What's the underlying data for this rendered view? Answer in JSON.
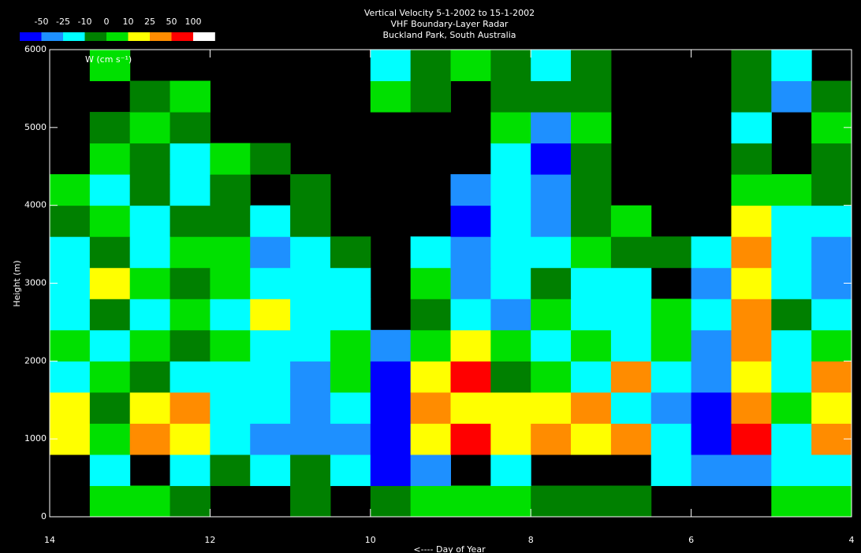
{
  "chart_data": {
    "type": "heatmap",
    "title": "Vertical Velocity  5-1-2002 to 15-1-2002",
    "subtitle": "VHF Boundary-Layer Radar",
    "location": "Buckland Park, South Australia",
    "annotation": "W (cm s⁻¹)",
    "xlabel": "<---- Day of Year",
    "ylabel": "Height (m)",
    "xlim": [
      14,
      4
    ],
    "xticks": [
      14,
      12,
      10,
      8,
      6,
      4
    ],
    "ylim": [
      0,
      6000
    ],
    "yticks": [
      0,
      1000,
      2000,
      3000,
      4000,
      5000,
      6000
    ],
    "xbins": [
      14,
      13.5,
      13,
      12.5,
      12,
      11.5,
      11,
      10.5,
      10,
      9.5,
      9,
      8.5,
      8,
      7.5,
      7,
      6.5,
      6,
      5.5,
      5,
      4.5,
      4
    ],
    "ybins": [
      0,
      400,
      800,
      1200,
      1600,
      2000,
      2400,
      2800,
      3200,
      3600,
      4000,
      4400,
      4800,
      5200,
      5600,
      6000
    ],
    "colorbar": {
      "bounds": [
        -50,
        -25,
        -10,
        0,
        10,
        25,
        50,
        100
      ],
      "colors": [
        "#0000ff",
        "#1e90ff",
        "#00ffff",
        "#008000",
        "#00e000",
        "#ffff00",
        "#ff8c00",
        "#ff0000",
        "#ffffff"
      ]
    },
    "z": [
      [
        null,
        5,
        5,
        -5,
        null,
        null,
        -5,
        null,
        -5,
        5,
        5,
        5,
        -5,
        -5,
        -5,
        null,
        null,
        null,
        5,
        5
      ],
      [
        null,
        -15,
        null,
        -15,
        -5,
        -15,
        -5,
        -15,
        -60,
        -35,
        null,
        -15,
        null,
        null,
        null,
        -15,
        -35,
        -35,
        -15,
        -15
      ],
      [
        15,
        5,
        35,
        15,
        -15,
        -35,
        -35,
        -35,
        -60,
        15,
        70,
        15,
        35,
        15,
        35,
        -15,
        -60,
        70,
        -15,
        35
      ],
      [
        15,
        -5,
        15,
        35,
        -15,
        -15,
        -35,
        -15,
        -60,
        35,
        15,
        15,
        15,
        35,
        -15,
        -35,
        -60,
        35,
        5,
        15
      ],
      [
        -15,
        5,
        -5,
        -15,
        -15,
        -15,
        -35,
        5,
        -60,
        15,
        70,
        -5,
        5,
        -15,
        35,
        -15,
        -35,
        15,
        -15,
        35
      ],
      [
        5,
        -15,
        5,
        -5,
        5,
        -15,
        -15,
        5,
        -35,
        5,
        15,
        5,
        -15,
        5,
        -15,
        5,
        -35,
        35,
        -15,
        5
      ],
      [
        -15,
        -5,
        -15,
        5,
        -15,
        15,
        -15,
        -15,
        null,
        -5,
        -15,
        -35,
        5,
        -15,
        -15,
        5,
        -15,
        35,
        -5,
        -15
      ],
      [
        -15,
        15,
        5,
        -5,
        5,
        -15,
        -15,
        -15,
        null,
        5,
        -35,
        -15,
        -5,
        -15,
        -15,
        null,
        -35,
        15,
        -15,
        -35
      ],
      [
        -15,
        -5,
        -15,
        5,
        5,
        -35,
        -15,
        -5,
        null,
        -15,
        -35,
        -15,
        -15,
        5,
        -5,
        -5,
        -15,
        35,
        -15,
        -35
      ],
      [
        -5,
        5,
        -15,
        -5,
        -5,
        -15,
        -5,
        null,
        null,
        null,
        -60,
        -15,
        -35,
        -5,
        5,
        null,
        null,
        15,
        -15,
        -15
      ],
      [
        5,
        -15,
        -5,
        -15,
        -5,
        null,
        -5,
        null,
        null,
        null,
        -35,
        -15,
        -35,
        -5,
        null,
        null,
        null,
        5,
        5,
        -5
      ],
      [
        null,
        5,
        -5,
        -15,
        5,
        -5,
        null,
        null,
        null,
        null,
        null,
        -15,
        -60,
        -5,
        null,
        null,
        null,
        -5,
        null,
        -5
      ],
      [
        null,
        -5,
        5,
        -5,
        null,
        null,
        null,
        null,
        null,
        null,
        null,
        5,
        -35,
        5,
        null,
        null,
        null,
        -15,
        null,
        5
      ],
      [
        null,
        null,
        -5,
        5,
        null,
        null,
        null,
        null,
        5,
        -5,
        null,
        -5,
        -5,
        -5,
        null,
        null,
        null,
        -5,
        -35,
        -5
      ],
      [
        null,
        5,
        null,
        null,
        null,
        null,
        null,
        null,
        -15,
        -5,
        5,
        -5,
        -15,
        -5,
        null,
        null,
        null,
        -5,
        -15,
        null
      ]
    ]
  }
}
